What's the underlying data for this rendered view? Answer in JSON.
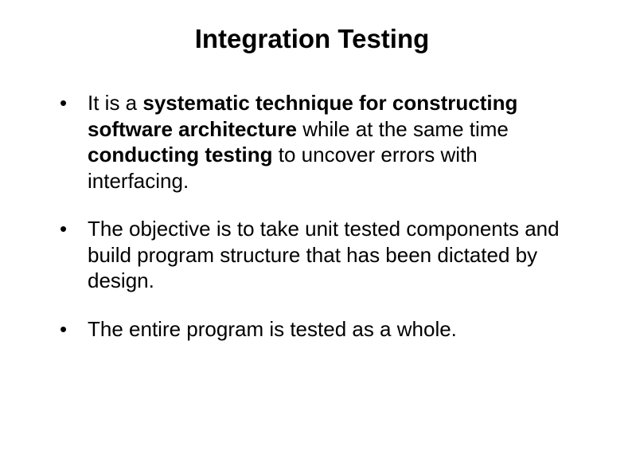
{
  "slide": {
    "title": "Integration Testing",
    "title_fontsize": 33,
    "body_fontsize": 26,
    "background_color": "#ffffff",
    "text_color": "#000000",
    "font_family": "Arial",
    "bullets": [
      {
        "segments": [
          {
            "text": "It is a ",
            "bold": false
          },
          {
            "text": "systematic technique for constructing software architecture ",
            "bold": true
          },
          {
            "text": "while at the same time ",
            "bold": false
          },
          {
            "text": "conducting testing ",
            "bold": true
          },
          {
            "text": "to uncover errors with interfacing.",
            "bold": false
          }
        ]
      },
      {
        "segments": [
          {
            "text": "The objective is to take unit tested components and build program structure that has been dictated by design.",
            "bold": false
          }
        ]
      },
      {
        "segments": [
          {
            "text": "The entire program is tested as a whole.",
            "bold": false
          }
        ]
      }
    ]
  }
}
